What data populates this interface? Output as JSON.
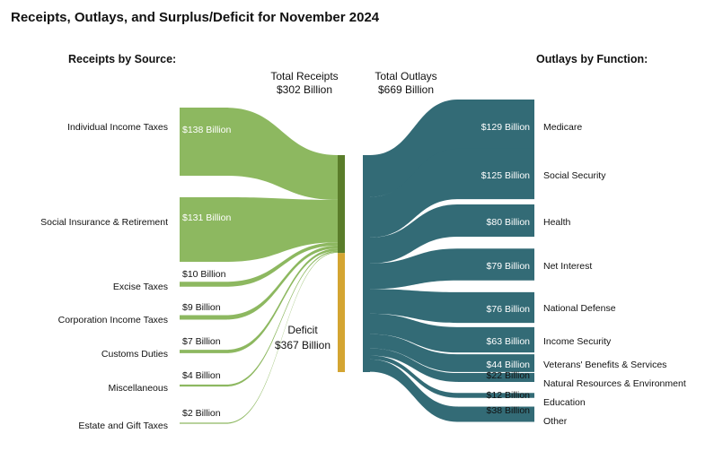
{
  "title": "Receipts, Outlays, and Surplus/Deficit for November 2024",
  "receipts_heading": "Receipts by Source:",
  "outlays_heading": "Outlays by Function:",
  "total_receipts": {
    "line1": "Total Receipts",
    "line2": "$302 Billion"
  },
  "total_outlays": {
    "line1": "Total Outlays",
    "line2": "$669 Billion"
  },
  "deficit": {
    "line1": "Deficit",
    "line2": "$367 Billion"
  },
  "colors": {
    "receipts_flow": "#8db860",
    "receipts_bar": "#5a7d2a",
    "deficit_bar": "#d4a532",
    "outlays": "#336b76"
  },
  "chart_data": {
    "type": "sankey",
    "units": "billion dollars",
    "receipts": [
      {
        "name": "Individual Income Taxes",
        "value": 138,
        "label": "$138 Billion"
      },
      {
        "name": "Social Insurance & Retirement",
        "value": 131,
        "label": "$131 Billion"
      },
      {
        "name": "Excise Taxes",
        "value": 10,
        "label": "$10 Billion"
      },
      {
        "name": "Corporation Income Taxes",
        "value": 9,
        "label": "$9 Billion"
      },
      {
        "name": "Customs Duties",
        "value": 7,
        "label": "$7 Billion"
      },
      {
        "name": "Miscellaneous",
        "value": 4,
        "label": "$4 Billion"
      },
      {
        "name": "Estate and Gift Taxes",
        "value": 2,
        "label": "$2 Billion"
      }
    ],
    "total_receipts": 302,
    "deficit": 367,
    "total_outlays": 669,
    "outlays": [
      {
        "name": "Medicare",
        "value": 129,
        "label": "$129 Billion"
      },
      {
        "name": "Social Security",
        "value": 125,
        "label": "$125 Billion"
      },
      {
        "name": "Health",
        "value": 80,
        "label": "$80 Billion"
      },
      {
        "name": "Net Interest",
        "value": 79,
        "label": "$79 Billion"
      },
      {
        "name": "National Defense",
        "value": 76,
        "label": "$76 Billion"
      },
      {
        "name": "Income Security",
        "value": 63,
        "label": "$63 Billion"
      },
      {
        "name": "Veterans' Benefits & Services",
        "value": 44,
        "label": "$44 Billion"
      },
      {
        "name": "Natural Resources & Environment",
        "value": 22,
        "label": "$22 Billion"
      },
      {
        "name": "Education",
        "value": 12,
        "label": "$12 Billion"
      },
      {
        "name": "Other",
        "value": 38,
        "label": "$38 Billion"
      }
    ]
  }
}
